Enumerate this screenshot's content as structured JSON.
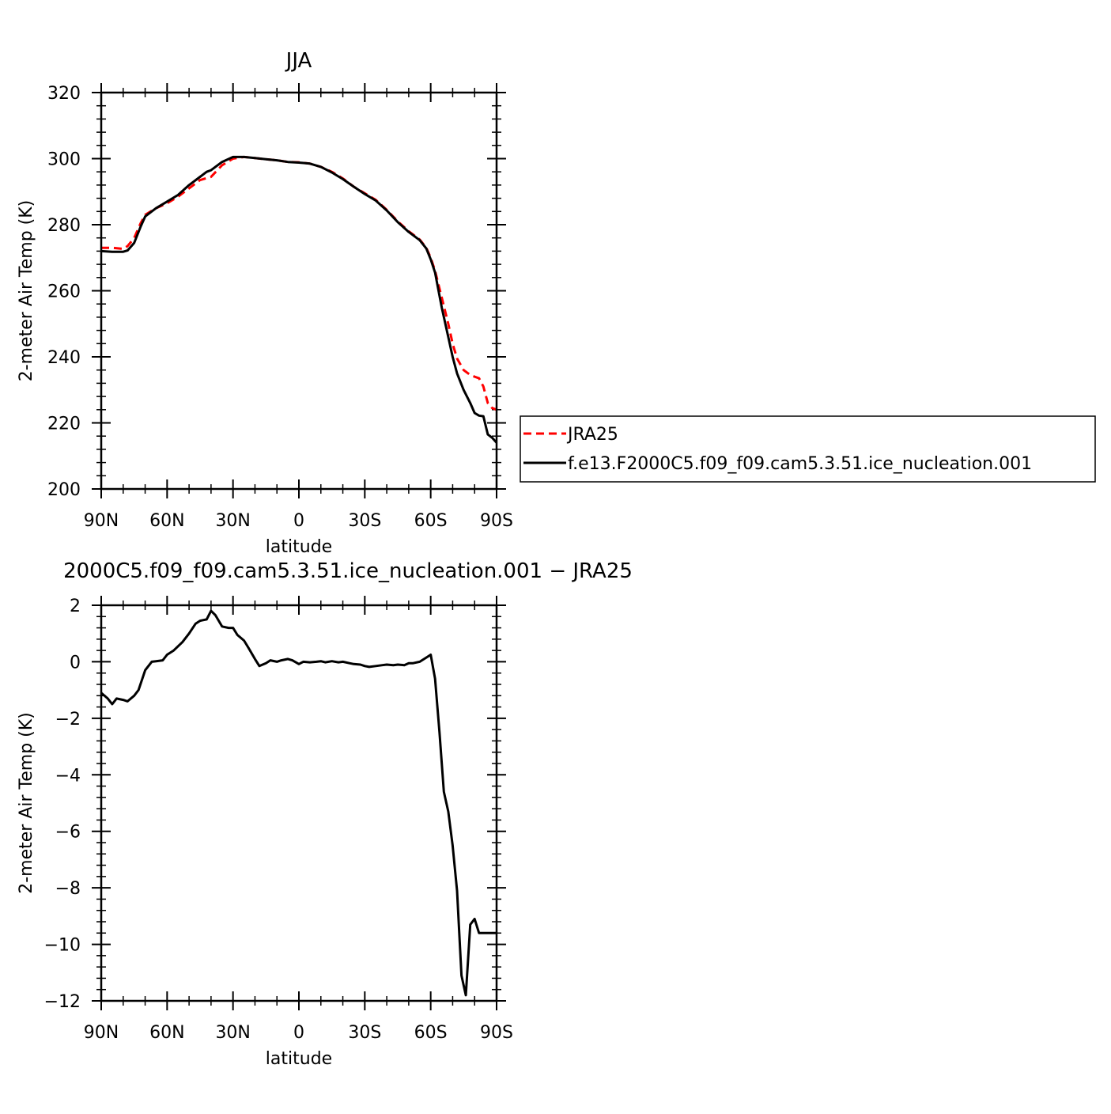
{
  "chart_data": [
    {
      "type": "line",
      "title": "JJA",
      "xlabel": "latitude",
      "ylabel": "2-meter Air Temp (K)",
      "xlim": [
        90,
        -90
      ],
      "ylim": [
        200,
        320
      ],
      "xticks": [
        90,
        60,
        30,
        0,
        -30,
        -60,
        -90
      ],
      "xtick_labels": [
        "90N",
        "60N",
        "30N",
        "0",
        "30S",
        "60S",
        "90S"
      ],
      "yticks": [
        200,
        220,
        240,
        260,
        280,
        300,
        320
      ],
      "ytick_labels": [
        "200",
        "220",
        "240",
        "260",
        "280",
        "300",
        "320"
      ],
      "grid": false,
      "legend_position": "right",
      "series": [
        {
          "name": "JRA25",
          "color": "#ff0000",
          "dash": "dashed",
          "x": [
            90,
            85,
            80,
            78,
            75,
            72,
            70,
            65,
            60,
            55,
            50,
            45,
            40,
            35,
            30,
            25,
            20,
            15,
            10,
            5,
            0,
            -5,
            -10,
            -15,
            -20,
            -25,
            -30,
            -35,
            -40,
            -45,
            -50,
            -55,
            -58,
            -60,
            -62,
            -65,
            -68,
            -70,
            -72,
            -75,
            -78,
            -80,
            -82,
            -84,
            -86,
            -88,
            -90
          ],
          "y": [
            273,
            273,
            272.7,
            273.5,
            276,
            280.5,
            283,
            285,
            286.5,
            288.5,
            291,
            293.5,
            294.5,
            298,
            300,
            300.5,
            300.2,
            299.8,
            299.5,
            299,
            298.9,
            298.5,
            297.5,
            296,
            294,
            291.5,
            289.5,
            287.5,
            284.5,
            281,
            278,
            275.5,
            273,
            270,
            266,
            258,
            250,
            244,
            239.5,
            236,
            234.5,
            234,
            233.5,
            231,
            226,
            224.5,
            224
          ]
        },
        {
          "name": "f.e13.F2000C5.f09_f09.cam5.3.51.ice_nucleation.001",
          "color": "#000000",
          "dash": "solid",
          "x": [
            90,
            85,
            80,
            78,
            75,
            72,
            70,
            65,
            60,
            55,
            50,
            45,
            42,
            40,
            35,
            30,
            25,
            20,
            15,
            10,
            5,
            0,
            -5,
            -10,
            -15,
            -20,
            -25,
            -30,
            -35,
            -40,
            -45,
            -50,
            -55,
            -58,
            -60,
            -62,
            -65,
            -68,
            -70,
            -72,
            -75,
            -78,
            -80,
            -82,
            -84,
            -86,
            -88,
            -90
          ],
          "y": [
            272,
            271.8,
            271.8,
            272.2,
            274.5,
            279.5,
            282.5,
            285,
            287,
            289,
            292,
            294.5,
            296,
            296.5,
            299,
            300.5,
            300.5,
            300.2,
            299.8,
            299.5,
            299,
            298.8,
            298.5,
            297.5,
            295.8,
            293.8,
            291.5,
            289.3,
            287.3,
            284.3,
            280.8,
            277.8,
            275.3,
            272.8,
            269.5,
            265.5,
            255,
            246,
            240,
            235,
            230,
            226,
            223,
            222.2,
            222,
            216.5,
            215.5,
            214
          ]
        }
      ]
    },
    {
      "type": "line",
      "title": "f.e13.F2000C5.f09_f09.cam5.3.51.ice_nucleation.001 - JRA25",
      "visible_title": "2000C5.f09_f09.cam5.3.51.ice_nucleation.001 − JRA25",
      "xlabel": "latitude",
      "ylabel": "2-meter Air Temp (K)",
      "xlim": [
        90,
        -90
      ],
      "ylim": [
        -12,
        2
      ],
      "xticks": [
        90,
        60,
        30,
        0,
        -30,
        -60,
        -90
      ],
      "xtick_labels": [
        "90N",
        "60N",
        "30N",
        "0",
        "30S",
        "60S",
        "90S"
      ],
      "yticks": [
        -12,
        -10,
        -8,
        -6,
        -4,
        -2,
        0,
        2
      ],
      "ytick_labels": [
        "−12",
        "−10",
        "−8",
        "−6",
        "−4",
        "−2",
        "0",
        "2"
      ],
      "grid": false,
      "series": [
        {
          "name": "",
          "color": "#000000",
          "dash": "solid",
          "x": [
            90,
            87,
            85,
            83,
            80,
            78,
            75,
            73,
            70,
            67,
            65,
            62,
            60,
            57,
            55,
            53,
            50,
            47,
            45,
            42,
            40,
            38,
            35,
            32,
            30,
            28,
            25,
            23,
            20,
            18,
            15,
            13,
            10,
            8,
            5,
            3,
            0,
            -2,
            -5,
            -8,
            -10,
            -12,
            -15,
            -18,
            -20,
            -23,
            -25,
            -28,
            -30,
            -32,
            -35,
            -38,
            -40,
            -43,
            -45,
            -48,
            -50,
            -52,
            -55,
            -58,
            -60,
            -62,
            -64,
            -66,
            -68,
            -70,
            -72,
            -74,
            -76,
            -78,
            -80,
            -82,
            -84,
            -86,
            -88,
            -90
          ],
          "y": [
            -1.1,
            -1.3,
            -1.5,
            -1.3,
            -1.35,
            -1.4,
            -1.2,
            -1.0,
            -0.3,
            0.0,
            0.02,
            0.05,
            0.25,
            0.4,
            0.55,
            0.7,
            1.0,
            1.35,
            1.45,
            1.5,
            1.8,
            1.65,
            1.25,
            1.2,
            1.2,
            0.95,
            0.75,
            0.5,
            0.1,
            -0.15,
            -0.05,
            0.05,
            0.0,
            0.05,
            0.1,
            0.05,
            -0.08,
            0.0,
            -0.02,
            0.0,
            0.02,
            -0.02,
            0.02,
            -0.02,
            0.0,
            -0.05,
            -0.08,
            -0.1,
            -0.15,
            -0.18,
            -0.15,
            -0.12,
            -0.1,
            -0.12,
            -0.1,
            -0.12,
            -0.05,
            -0.05,
            0.0,
            0.15,
            0.25,
            -0.6,
            -2.5,
            -4.6,
            -5.3,
            -6.5,
            -8.1,
            -11.1,
            -11.8,
            -9.3,
            -9.1,
            -9.6,
            -9.6,
            -9.6,
            -9.6,
            -9.6
          ]
        }
      ]
    }
  ]
}
